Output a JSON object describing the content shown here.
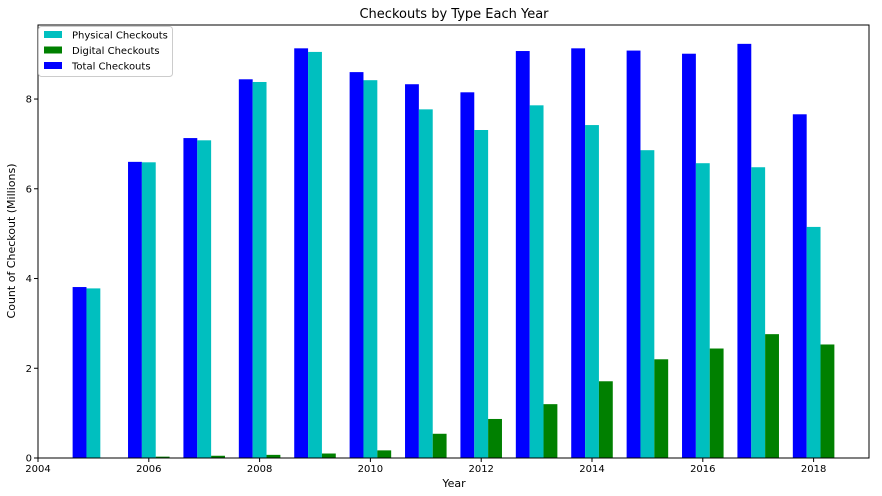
{
  "chart_data": {
    "type": "bar",
    "title": "Checkouts by Type Each Year",
    "xlabel": "Year",
    "ylabel": "Count of Checkout (Millions)",
    "xlim": [
      2004,
      2019
    ],
    "ylim": [
      0,
      9.65
    ],
    "xticks": [
      "2004",
      "2006",
      "2008",
      "2010",
      "2012",
      "2014",
      "2016",
      "2018"
    ],
    "yticks": [
      "0",
      "2",
      "4",
      "6",
      "8"
    ],
    "grid": false,
    "legend_position": "top-left",
    "x": [
      2005,
      2006,
      2007,
      2008,
      2009,
      2010,
      2011,
      2012,
      2013,
      2014,
      2015,
      2016,
      2017,
      2018
    ],
    "series": [
      {
        "name": "Physical Checkouts",
        "color": "#00bfbf",
        "values": [
          3.78,
          6.59,
          7.08,
          8.38,
          9.05,
          8.42,
          7.77,
          7.31,
          7.86,
          7.42,
          6.86,
          6.57,
          6.48,
          5.15
        ]
      },
      {
        "name": "Digital Checkouts",
        "color": "#008000",
        "values": [
          0.0,
          0.03,
          0.05,
          0.07,
          0.1,
          0.17,
          0.54,
          0.87,
          1.2,
          1.71,
          2.2,
          2.44,
          2.76,
          2.53
        ]
      },
      {
        "name": "Total Checkouts",
        "color": "#0000ff",
        "values": [
          3.81,
          6.6,
          7.13,
          8.44,
          9.13,
          8.6,
          8.33,
          8.15,
          9.07,
          9.13,
          9.08,
          9.01,
          9.23,
          7.66
        ]
      }
    ]
  }
}
